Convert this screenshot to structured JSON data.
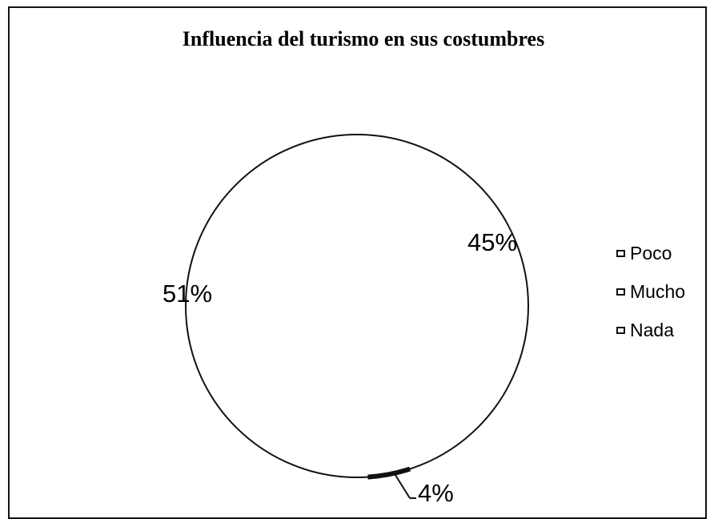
{
  "chart_data": {
    "type": "pie",
    "title": "Influencia del turismo en sus costumbres",
    "categories": [
      "Poco",
      "Mucho",
      "Nada"
    ],
    "values": [
      45,
      4,
      51
    ],
    "labels": [
      "45%",
      "4%",
      "51%"
    ],
    "colors": [
      "#ffffff",
      "#111111",
      "#ffffff"
    ],
    "legend_position": "right"
  }
}
